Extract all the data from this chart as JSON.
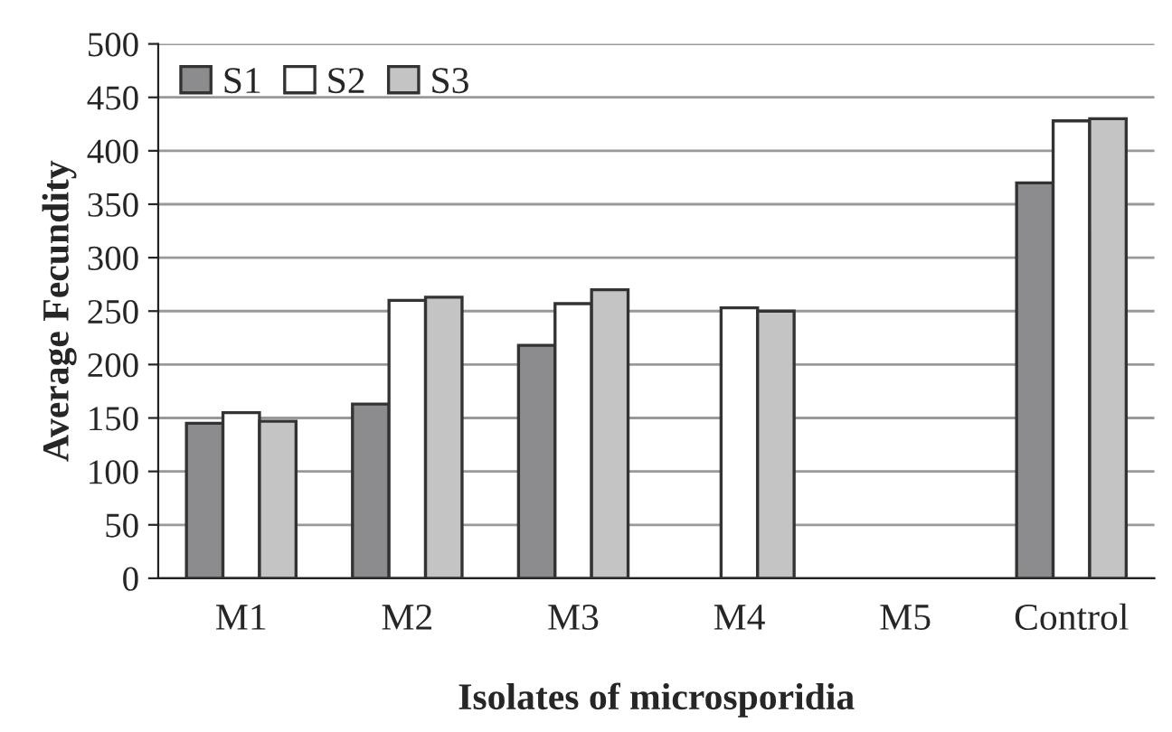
{
  "chart_data": {
    "type": "bar",
    "xlabel": "Isolates of microsporidia",
    "ylabel": "Average Fecundity",
    "categories": [
      "M1",
      "M2",
      "M3",
      "M4",
      "M5",
      "Control"
    ],
    "series": [
      {
        "name": "S1",
        "color": "#8c8c8e",
        "values": [
          145,
          163,
          218,
          null,
          null,
          370
        ]
      },
      {
        "name": "S2",
        "color": "#ffffff",
        "values": [
          155,
          260,
          257,
          253,
          null,
          428
        ]
      },
      {
        "name": "S3",
        "color": "#c4c4c4",
        "values": [
          147,
          263,
          270,
          250,
          null,
          430
        ]
      }
    ],
    "ylim": [
      0,
      500
    ],
    "yticks": [
      0,
      50,
      100,
      150,
      200,
      250,
      300,
      350,
      400,
      450,
      500
    ],
    "grid": "y",
    "legend": "top left"
  }
}
